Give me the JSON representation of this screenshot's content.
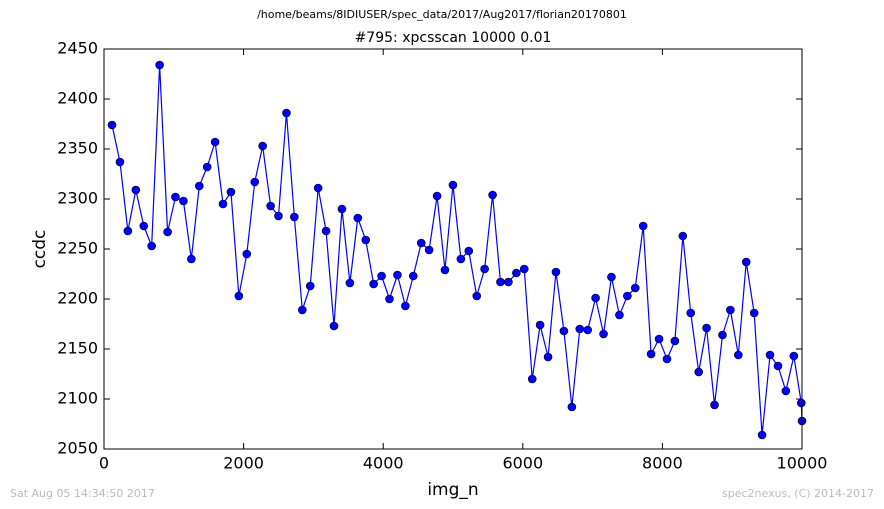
{
  "chart_data": {
    "type": "line",
    "suptitle": "/home/beams/8IDIUSER/spec_data/2017/Aug2017/florian20170801",
    "title": "#795: xpcsscan 10000 0.01",
    "xlabel": "img_n",
    "ylabel": "ccdc",
    "footer_left": "Sat Aug 05 14:34:50 2017",
    "footer_right": "spec2nexus, (C) 2014-2017",
    "x": [
      115,
      229,
      342,
      456,
      570,
      683,
      797,
      911,
      1024,
      1138,
      1251,
      1365,
      1478,
      1592,
      1705,
      1819,
      1932,
      2046,
      2160,
      2273,
      2387,
      2500,
      2614,
      2727,
      2841,
      2955,
      3068,
      3182,
      3295,
      3409,
      3523,
      3636,
      3750,
      3863,
      3977,
      4090,
      4204,
      4318,
      4431,
      4545,
      4658,
      4772,
      4885,
      4999,
      5113,
      5226,
      5340,
      5453,
      5567,
      5680,
      5794,
      5908,
      6021,
      6135,
      6248,
      6362,
      6475,
      6589,
      6703,
      6816,
      6930,
      7043,
      7157,
      7270,
      7384,
      7498,
      7611,
      7725,
      7838,
      7952,
      8066,
      8179,
      8293,
      8406,
      8520,
      8633,
      8747,
      8861,
      8974,
      9088,
      9201,
      9315,
      9428,
      9542,
      9656,
      9769,
      9883,
      9990,
      10000
    ],
    "series": [
      {
        "color": "#0000ff",
        "values": [
          2374,
          2337,
          2268,
          2309,
          2273,
          2253,
          2434,
          2267,
          2302,
          2298,
          2240,
          2313,
          2332,
          2357,
          2295,
          2307,
          2203,
          2245,
          2317,
          2353,
          2293,
          2283,
          2386,
          2282,
          2189,
          2213,
          2311,
          2268,
          2173,
          2290,
          2216,
          2281,
          2259,
          2215,
          2223,
          2200,
          2224,
          2193,
          2223,
          2256,
          2249,
          2303,
          2229,
          2314,
          2240,
          2248,
          2203,
          2230,
          2304,
          2217,
          2217,
          2226,
          2230,
          2120,
          2174,
          2142,
          2227,
          2168,
          2092,
          2170,
          2169,
          2201,
          2165,
          2222,
          2184,
          2203,
          2211,
          2273,
          2145,
          2160,
          2140,
          2158,
          2263,
          2186,
          2127,
          2171,
          2094,
          2164,
          2189,
          2144,
          2237,
          2186,
          2064,
          2144,
          2133,
          2108,
          2143,
          2096,
          2078
        ]
      }
    ],
    "xlim": [
      0,
      10000
    ],
    "xticks": [
      0,
      2000,
      4000,
      6000,
      8000,
      10000
    ],
    "ylim": [
      2050,
      2450
    ],
    "yticks": [
      2050,
      2100,
      2150,
      2200,
      2250,
      2300,
      2350,
      2400,
      2450
    ],
    "grid": false
  }
}
